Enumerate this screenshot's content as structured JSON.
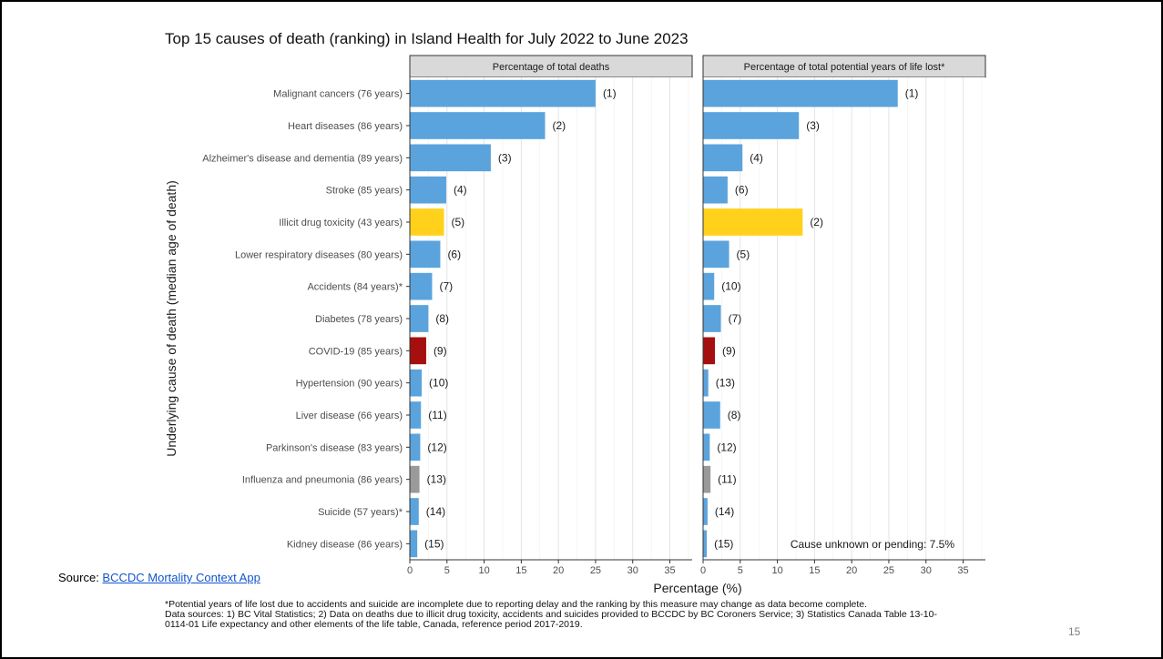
{
  "title": "Top 15 causes of death (ranking) in Island Health for July 2022 to June 2023",
  "source": {
    "prefix": "Source: ",
    "link_text": "BCCDC Mortality Context App"
  },
  "footnotes": [
    "*Potential years of life lost due to accidents and suicide are incomplete due to reporting delay and the ranking by this measure may change as data become complete.",
    "Data sources: 1) BC Vital Statistics; 2) Data on deaths due to illicit drug toxicity, accidents and suicides provided to BCCDC by BC Coroners Service; 3) Statistics Canada Table 13-10-0114-01 Life expectancy and other elements of the life table, Canada, reference period 2017-2019."
  ],
  "page_number": "15",
  "colors": {
    "default": "#5ba3dc",
    "drug": "#ffd11a",
    "covid": "#a50f0f",
    "influenza": "#9a9a9a"
  },
  "chart_data": {
    "type": "bar",
    "orientation": "horizontal",
    "ylabel": "Underlying cause of death (median age of death)",
    "xlabel": "Percentage (%)",
    "xlim": [
      0,
      38
    ],
    "xticks": [
      0,
      5,
      10,
      15,
      20,
      25,
      30,
      35
    ],
    "grid": true,
    "categories": [
      "Malignant cancers (76 years)",
      "Heart diseases (86 years)",
      "Alzheimer's disease and dementia (89 years)",
      "Stroke (85 years)",
      "Illicit drug toxicity (43 years)",
      "Lower respiratory diseases (80 years)",
      "Accidents (84 years)*",
      "Diabetes (78 years)",
      "COVID-19 (85 years)",
      "Hypertension (90 years)",
      "Liver disease (66 years)",
      "Parkinson's disease (83 years)",
      "Influenza and pneumonia (86 years)",
      "Suicide (57 years)*",
      "Kidney disease (86 years)"
    ],
    "bar_color_keys": [
      "default",
      "default",
      "default",
      "default",
      "drug",
      "default",
      "default",
      "default",
      "covid",
      "default",
      "default",
      "default",
      "influenza",
      "default",
      "default"
    ],
    "panels": [
      {
        "name": "Percentage of total deaths",
        "values": [
          25.0,
          18.2,
          10.9,
          4.9,
          4.6,
          4.1,
          3.0,
          2.5,
          2.2,
          1.6,
          1.5,
          1.4,
          1.3,
          1.2,
          1.0
        ],
        "labels": [
          "(1)",
          "(2)",
          "(3)",
          "(4)",
          "(5)",
          "(6)",
          "(7)",
          "(8)",
          "(9)",
          "(10)",
          "(11)",
          "(12)",
          "(13)",
          "(14)",
          "(15)"
        ],
        "annotation": ""
      },
      {
        "name": "Percentage of total potential years of life lost*",
        "values": [
          26.2,
          12.9,
          5.3,
          3.3,
          13.4,
          3.5,
          1.5,
          2.4,
          1.6,
          0.7,
          2.3,
          0.9,
          1.0,
          0.6,
          0.5
        ],
        "labels": [
          "(1)",
          "(3)",
          "(4)",
          "(6)",
          "(2)",
          "(5)",
          "(10)",
          "(7)",
          "(9)",
          "(13)",
          "(8)",
          "(12)",
          "(11)",
          "(14)",
          "(15)"
        ],
        "annotation": "Cause unknown or pending: 7.5%"
      }
    ]
  }
}
